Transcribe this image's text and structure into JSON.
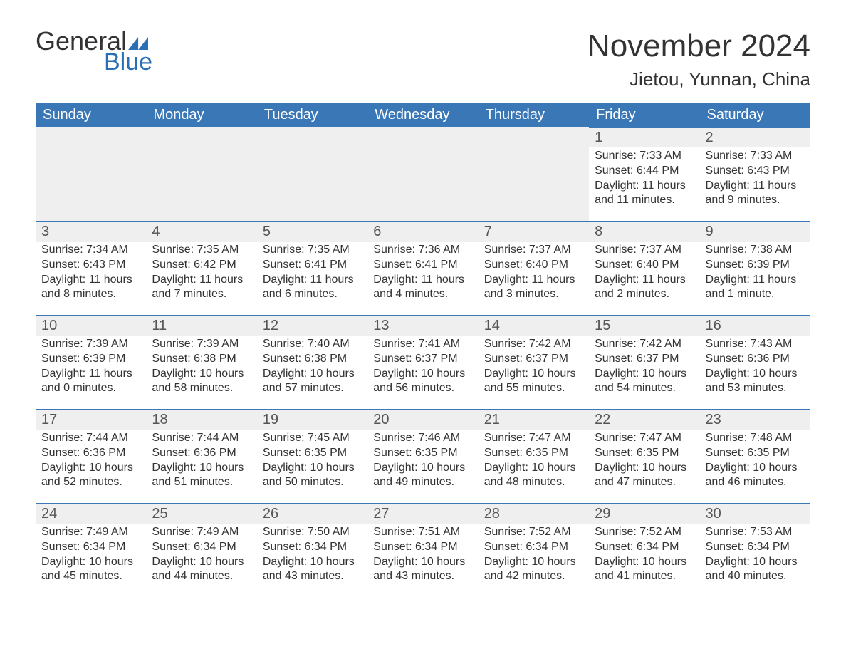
{
  "brand": {
    "word1": "General",
    "word2": "Blue"
  },
  "header": {
    "month_title": "November 2024",
    "location": "Jietou, Yunnan, China"
  },
  "columns": [
    "Sunday",
    "Monday",
    "Tuesday",
    "Wednesday",
    "Thursday",
    "Friday",
    "Saturday"
  ],
  "colors": {
    "primary": "#3a77b7",
    "header_text": "#ffffff",
    "page_bg": "#ffffff",
    "daynum_bg": "#efefef",
    "body_text": "#333333"
  },
  "typography": {
    "month_title_fontsize": 44,
    "location_fontsize": 26,
    "column_header_fontsize": 20,
    "daynum_fontsize": 20,
    "body_fontsize": 16
  },
  "weeks": [
    [
      null,
      null,
      null,
      null,
      null,
      {
        "n": "1",
        "sr": "Sunrise: 7:33 AM",
        "ss": "Sunset: 6:44 PM",
        "dl": "Daylight: 11 hours and 11 minutes."
      },
      {
        "n": "2",
        "sr": "Sunrise: 7:33 AM",
        "ss": "Sunset: 6:43 PM",
        "dl": "Daylight: 11 hours and 9 minutes."
      }
    ],
    [
      {
        "n": "3",
        "sr": "Sunrise: 7:34 AM",
        "ss": "Sunset: 6:43 PM",
        "dl": "Daylight: 11 hours and 8 minutes."
      },
      {
        "n": "4",
        "sr": "Sunrise: 7:35 AM",
        "ss": "Sunset: 6:42 PM",
        "dl": "Daylight: 11 hours and 7 minutes."
      },
      {
        "n": "5",
        "sr": "Sunrise: 7:35 AM",
        "ss": "Sunset: 6:41 PM",
        "dl": "Daylight: 11 hours and 6 minutes."
      },
      {
        "n": "6",
        "sr": "Sunrise: 7:36 AM",
        "ss": "Sunset: 6:41 PM",
        "dl": "Daylight: 11 hours and 4 minutes."
      },
      {
        "n": "7",
        "sr": "Sunrise: 7:37 AM",
        "ss": "Sunset: 6:40 PM",
        "dl": "Daylight: 11 hours and 3 minutes."
      },
      {
        "n": "8",
        "sr": "Sunrise: 7:37 AM",
        "ss": "Sunset: 6:40 PM",
        "dl": "Daylight: 11 hours and 2 minutes."
      },
      {
        "n": "9",
        "sr": "Sunrise: 7:38 AM",
        "ss": "Sunset: 6:39 PM",
        "dl": "Daylight: 11 hours and 1 minute."
      }
    ],
    [
      {
        "n": "10",
        "sr": "Sunrise: 7:39 AM",
        "ss": "Sunset: 6:39 PM",
        "dl": "Daylight: 11 hours and 0 minutes."
      },
      {
        "n": "11",
        "sr": "Sunrise: 7:39 AM",
        "ss": "Sunset: 6:38 PM",
        "dl": "Daylight: 10 hours and 58 minutes."
      },
      {
        "n": "12",
        "sr": "Sunrise: 7:40 AM",
        "ss": "Sunset: 6:38 PM",
        "dl": "Daylight: 10 hours and 57 minutes."
      },
      {
        "n": "13",
        "sr": "Sunrise: 7:41 AM",
        "ss": "Sunset: 6:37 PM",
        "dl": "Daylight: 10 hours and 56 minutes."
      },
      {
        "n": "14",
        "sr": "Sunrise: 7:42 AM",
        "ss": "Sunset: 6:37 PM",
        "dl": "Daylight: 10 hours and 55 minutes."
      },
      {
        "n": "15",
        "sr": "Sunrise: 7:42 AM",
        "ss": "Sunset: 6:37 PM",
        "dl": "Daylight: 10 hours and 54 minutes."
      },
      {
        "n": "16",
        "sr": "Sunrise: 7:43 AM",
        "ss": "Sunset: 6:36 PM",
        "dl": "Daylight: 10 hours and 53 minutes."
      }
    ],
    [
      {
        "n": "17",
        "sr": "Sunrise: 7:44 AM",
        "ss": "Sunset: 6:36 PM",
        "dl": "Daylight: 10 hours and 52 minutes."
      },
      {
        "n": "18",
        "sr": "Sunrise: 7:44 AM",
        "ss": "Sunset: 6:36 PM",
        "dl": "Daylight: 10 hours and 51 minutes."
      },
      {
        "n": "19",
        "sr": "Sunrise: 7:45 AM",
        "ss": "Sunset: 6:35 PM",
        "dl": "Daylight: 10 hours and 50 minutes."
      },
      {
        "n": "20",
        "sr": "Sunrise: 7:46 AM",
        "ss": "Sunset: 6:35 PM",
        "dl": "Daylight: 10 hours and 49 minutes."
      },
      {
        "n": "21",
        "sr": "Sunrise: 7:47 AM",
        "ss": "Sunset: 6:35 PM",
        "dl": "Daylight: 10 hours and 48 minutes."
      },
      {
        "n": "22",
        "sr": "Sunrise: 7:47 AM",
        "ss": "Sunset: 6:35 PM",
        "dl": "Daylight: 10 hours and 47 minutes."
      },
      {
        "n": "23",
        "sr": "Sunrise: 7:48 AM",
        "ss": "Sunset: 6:35 PM",
        "dl": "Daylight: 10 hours and 46 minutes."
      }
    ],
    [
      {
        "n": "24",
        "sr": "Sunrise: 7:49 AM",
        "ss": "Sunset: 6:34 PM",
        "dl": "Daylight: 10 hours and 45 minutes."
      },
      {
        "n": "25",
        "sr": "Sunrise: 7:49 AM",
        "ss": "Sunset: 6:34 PM",
        "dl": "Daylight: 10 hours and 44 minutes."
      },
      {
        "n": "26",
        "sr": "Sunrise: 7:50 AM",
        "ss": "Sunset: 6:34 PM",
        "dl": "Daylight: 10 hours and 43 minutes."
      },
      {
        "n": "27",
        "sr": "Sunrise: 7:51 AM",
        "ss": "Sunset: 6:34 PM",
        "dl": "Daylight: 10 hours and 43 minutes."
      },
      {
        "n": "28",
        "sr": "Sunrise: 7:52 AM",
        "ss": "Sunset: 6:34 PM",
        "dl": "Daylight: 10 hours and 42 minutes."
      },
      {
        "n": "29",
        "sr": "Sunrise: 7:52 AM",
        "ss": "Sunset: 6:34 PM",
        "dl": "Daylight: 10 hours and 41 minutes."
      },
      {
        "n": "30",
        "sr": "Sunrise: 7:53 AM",
        "ss": "Sunset: 6:34 PM",
        "dl": "Daylight: 10 hours and 40 minutes."
      }
    ]
  ]
}
